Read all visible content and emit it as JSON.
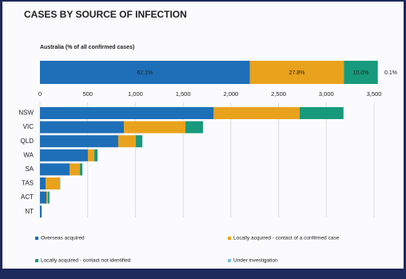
{
  "chart_data": [
    {
      "type": "percent-bar",
      "title": "CASES BY SOURCE OF INFECTION",
      "subtitle": "Australia (% of all confirmed cases)",
      "values": [
        62.1,
        27.8,
        10.0,
        0.1
      ],
      "value_labels": [
        "62.1%",
        "27.8%",
        "10.0%",
        "0.1%"
      ],
      "colors": [
        "#1d6fb8",
        "#e9a21c",
        "#179a7c",
        "#7cc4e6"
      ],
      "xlim": [
        0,
        100
      ]
    },
    {
      "type": "stacked-hbar",
      "categories": [
        "NSW",
        "VIC",
        "QLD",
        "WA",
        "SA",
        "TAS",
        "ACT",
        "NT"
      ],
      "series": [
        {
          "name": "Overseas acquired",
          "color": "#1d6fb8",
          "values": [
            1820,
            880,
            820,
            502,
            310,
            59,
            67,
            17
          ]
        },
        {
          "name": "Locally acquired - contact of a confirmed case",
          "color": "#e9a21c",
          "values": [
            900,
            644,
            185,
            68,
            109,
            150,
            17,
            1
          ]
        },
        {
          "name": "Locally acquired - contact not identified",
          "color": "#179a7c",
          "values": [
            460,
            184,
            67,
            33,
            25,
            3,
            16,
            1
          ]
        },
        {
          "name": "Under investigation",
          "color": "#7cc4e6",
          "values": [
            2,
            1,
            1,
            1,
            1,
            0,
            0,
            0
          ]
        }
      ],
      "xlim": [
        0,
        3500
      ],
      "xticks": [
        0,
        500,
        {
          "value": 1000,
          "label": "1,000"
        },
        {
          "value": 1500,
          "label": "1,500"
        },
        {
          "value": 2000,
          "label": "2,000"
        },
        {
          "value": 2500,
          "label": "2,500"
        },
        {
          "value": 3000,
          "label": "3,000"
        },
        {
          "value": 3500,
          "label": "3,500"
        }
      ],
      "grid": true,
      "legend": "bottom"
    }
  ]
}
